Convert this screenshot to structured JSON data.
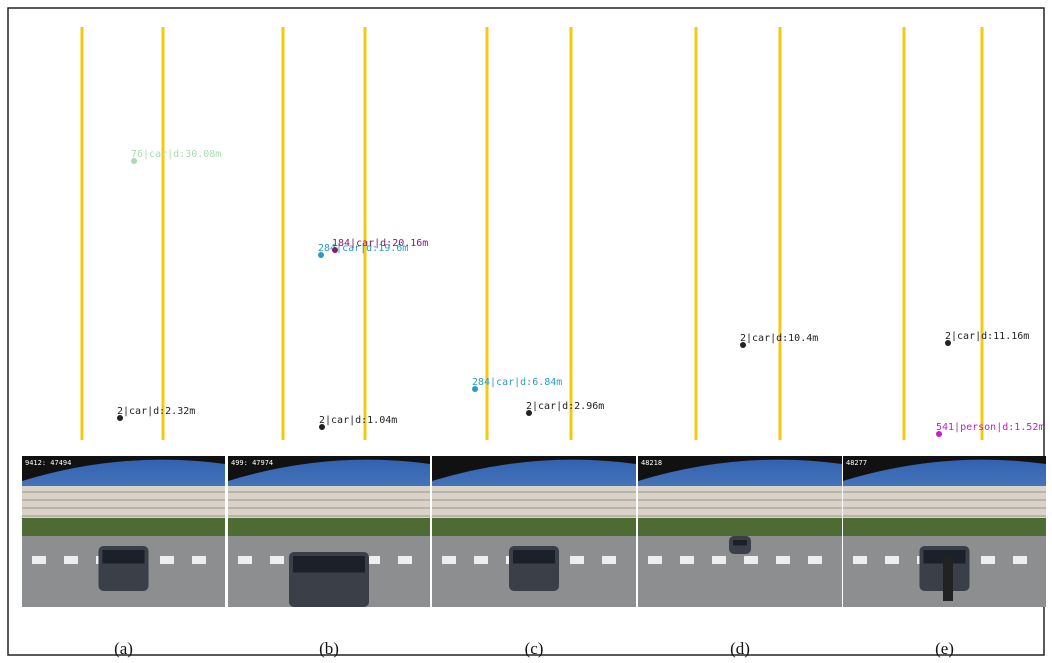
{
  "panels": [
    {
      "caption": "(a)",
      "frame": "9412: 47494",
      "detections": [
        {
          "label": "76|car|d:30.08m",
          "color": "#a8dcb0"
        },
        {
          "label": "2|car|d:2.32m",
          "color": "#222222"
        }
      ]
    },
    {
      "caption": "(b)",
      "frame": "499: 47974",
      "detections": [
        {
          "label": "284|car|d:19.6m",
          "color": "#2e9ac4"
        },
        {
          "label": "184|car|d:20.16m",
          "color": "#8a1a6a"
        },
        {
          "label": "2|car|d:1.04m",
          "color": "#222222"
        }
      ]
    },
    {
      "caption": "(c)",
      "detections": [
        {
          "label": "284|car|d:6.84m",
          "color": "#2e9ac4"
        },
        {
          "label": "2|car|d:2.96m",
          "color": "#222222"
        }
      ]
    },
    {
      "caption": "(d)",
      "frame": "48218",
      "detections": [
        {
          "label": "2|car|d:10.4m",
          "color": "#222222"
        }
      ]
    },
    {
      "caption": "(e)",
      "frame": "48277",
      "detections": [
        {
          "label": "2|car|d:11.16m",
          "color": "#222222"
        },
        {
          "label": "541|person|d:1.52m",
          "color": "#c020c8"
        }
      ]
    }
  ]
}
